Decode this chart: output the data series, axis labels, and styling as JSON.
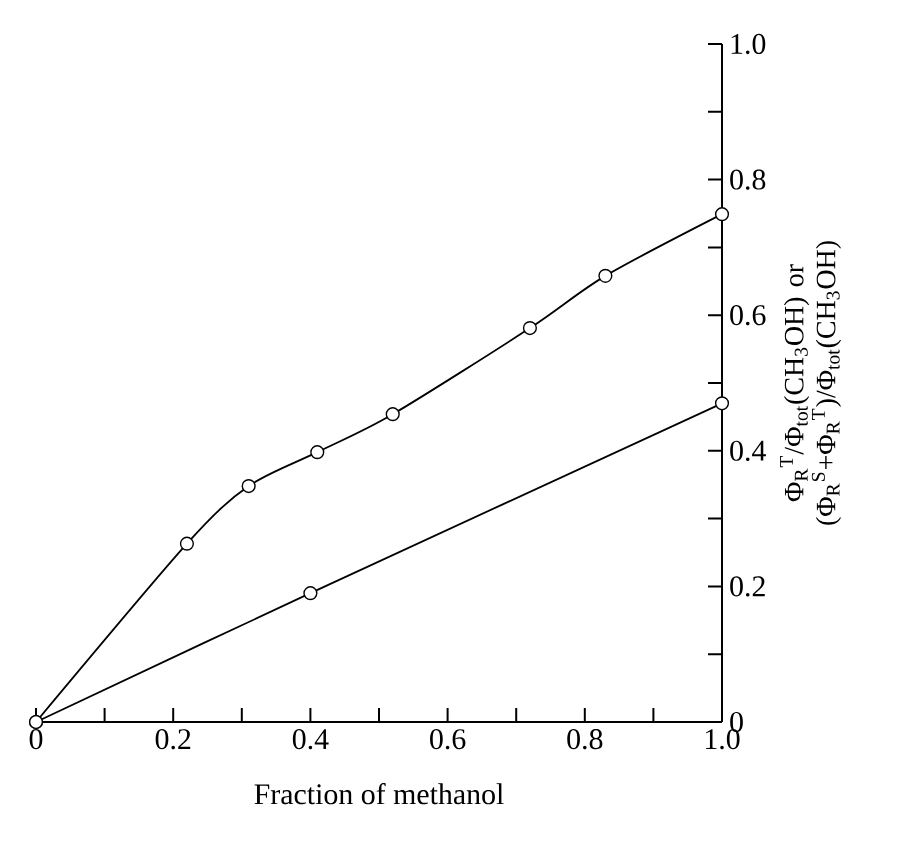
{
  "chart_data": {
    "type": "line",
    "xlabel": "Fraction of methanol",
    "ylabel": "Φ$_{R}$$^{T}$/Φ$_{tot}$(CH$_{3}$OH) or (Φ$_{R}$$^{S}$+Φ$_{R}$$^{T}$)/Φ$_{tot}$(CH$_{3}$OH)",
    "xlim": [
      0,
      1
    ],
    "ylim": [
      0,
      1
    ],
    "xticks": [
      0,
      0.2,
      0.4,
      0.6,
      0.8,
      {
        "value": 1,
        "label": "1.0"
      }
    ],
    "yticks": [
      0,
      0.2,
      0.4,
      0.6,
      0.8,
      {
        "value": 1,
        "label": "1.0"
      }
    ],
    "marker": "circle",
    "line_style": "solid",
    "series": [
      {
        "color": "#000000",
        "x": [
          0,
          0.22,
          0.31,
          0.41,
          0.52,
          0.72,
          0.83,
          1.0
        ],
        "values": [
          0,
          0.263,
          0.348,
          0.398,
          0.454,
          0.581,
          0.658,
          0.749
        ]
      },
      {
        "color": "#000000",
        "x": [
          0,
          0.4,
          1.0
        ],
        "values": [
          0,
          0.19,
          0.47
        ]
      }
    ]
  }
}
